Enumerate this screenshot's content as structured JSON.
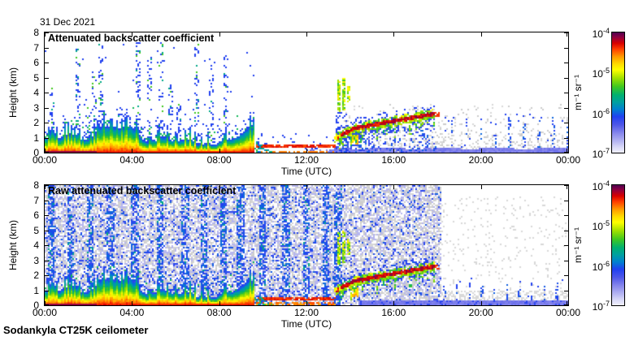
{
  "header": {
    "date": "31 Dec 2021"
  },
  "footer": {
    "instrument": "Sodankyla CT25K ceilometer"
  },
  "chart_data": [
    {
      "type": "heatmap",
      "title": "Attenuated backscatter coefficient",
      "xlabel": "Time (UTC)",
      "ylabel": "Height (km)",
      "x_ticks": [
        "00:00",
        "04:00",
        "08:00",
        "12:00",
        "16:00",
        "20:00",
        "00:00"
      ],
      "x_range_hours": [
        0,
        24
      ],
      "y_ticks": [
        "0",
        "1",
        "2",
        "3",
        "4",
        "5",
        "6",
        "7",
        "8"
      ],
      "ylim": [
        0,
        8
      ],
      "grid": false,
      "colorbar": {
        "units": "m⁻¹ sr⁻¹",
        "scale": "log",
        "range": [
          "1e-7",
          "1e-4"
        ],
        "ticks": [
          {
            "b": "10",
            "e": "-4"
          },
          {
            "b": "10",
            "e": "-5"
          },
          {
            "b": "10",
            "e": "-6"
          },
          {
            "b": "10",
            "e": "-7"
          }
        ],
        "stops": [
          [
            0,
            "#f0f0fc"
          ],
          [
            0.04,
            "#dcdcf8"
          ],
          [
            0.09,
            "#b8b8f2"
          ],
          [
            0.16,
            "#8888ec"
          ],
          [
            0.23,
            "#5058e8"
          ],
          [
            0.3,
            "#2040f0"
          ],
          [
            0.36,
            "#0080d0"
          ],
          [
            0.42,
            "#00a0a0"
          ],
          [
            0.48,
            "#00b070"
          ],
          [
            0.55,
            "#40c820"
          ],
          [
            0.62,
            "#a0e000"
          ],
          [
            0.69,
            "#ffff00"
          ],
          [
            0.74,
            "#ffd800"
          ],
          [
            0.8,
            "#ff9800"
          ],
          [
            0.86,
            "#ff4000"
          ],
          [
            0.91,
            "#d80000"
          ],
          [
            0.96,
            "#900040"
          ],
          [
            1,
            "#500050"
          ]
        ]
      },
      "features": {
        "boundary_layer": {
          "end_hour": 9.6,
          "taper_end_hour": 10.45,
          "mean_top_km": 1.05,
          "surface_line_end_hour": 2.4
        },
        "elevated_layer": {
          "h0": 9.7,
          "h1": 13.35,
          "z_km": 0.42
        },
        "virga_streaks": [
          [
            0.35,
            4.3
          ],
          [
            0.85,
            2.6
          ],
          [
            1.5,
            6.9
          ],
          [
            1.95,
            3.2
          ],
          [
            2.3,
            5.2
          ],
          [
            2.55,
            7.2
          ],
          [
            3.4,
            2.8
          ],
          [
            4.3,
            7.3
          ],
          [
            4.8,
            6.4
          ],
          [
            5.35,
            7.3
          ],
          [
            5.75,
            4.6
          ],
          [
            6.15,
            3.4
          ],
          [
            7.0,
            7.2
          ],
          [
            7.65,
            5.6
          ],
          [
            8.3,
            6.6
          ]
        ],
        "mid_streaks": [
          [
            13.5,
            0.1,
            2.7,
            4.9
          ],
          [
            13.72,
            0.08,
            2.85,
            5.0
          ],
          [
            13.93,
            0.05,
            3.3,
            4.4
          ]
        ],
        "cloud_base_points": [
          [
            13.3,
            0.95
          ],
          [
            14.2,
            1.6
          ],
          [
            16.0,
            2.1
          ],
          [
            17.9,
            2.6
          ]
        ],
        "cloud_blob": [
          14.0,
          14.4,
          0.55,
          1.15
        ],
        "end_clump": [
          17.85,
          18.1,
          2.35,
          2.7
        ],
        "surface_band_start_hour": 13.3,
        "gray_speckle": {
          "start_hour": 13.55,
          "top_km": 3.2
        }
      }
    },
    {
      "type": "heatmap",
      "title": "Raw attenuated backscatter coefficient",
      "xlabel": "Time (UTC)",
      "ylabel": "Height (km)",
      "x_ticks": [
        "00:00",
        "04:00",
        "08:00",
        "12:00",
        "16:00",
        "20:00",
        "00:00"
      ],
      "x_range_hours": [
        0,
        24
      ],
      "y_ticks": [
        "0",
        "1",
        "2",
        "3",
        "4",
        "5",
        "6",
        "7",
        "8"
      ],
      "ylim": [
        0,
        8
      ],
      "grid": false,
      "colorbar": {
        "units": "m⁻¹ sr⁻¹",
        "scale": "log",
        "range": [
          "1e-7",
          "1e-4"
        ],
        "ticks": [
          {
            "b": "10",
            "e": "-4"
          },
          {
            "b": "10",
            "e": "-5"
          },
          {
            "b": "10",
            "e": "-6"
          },
          {
            "b": "10",
            "e": "-7"
          }
        ]
      },
      "features": {
        "boundary_layer": {
          "end_hour": 9.6,
          "taper_end_hour": 10.45,
          "mean_top_km": 1.05,
          "surface_line_end_hour": 2.4
        },
        "elevated_layer": {
          "h0": 9.7,
          "h1": 13.35,
          "z_km": 0.42
        },
        "mid_streaks": [
          [
            13.5,
            0.1,
            2.7,
            4.9
          ],
          [
            13.72,
            0.08,
            2.85,
            5.0
          ],
          [
            13.93,
            0.05,
            3.3,
            4.4
          ]
        ],
        "cloud_base_points": [
          [
            13.3,
            0.95
          ],
          [
            14.2,
            1.6
          ],
          [
            16.0,
            2.1
          ],
          [
            17.9,
            2.6
          ]
        ],
        "cloud_blob": [
          14.0,
          14.4,
          0.55,
          1.15
        ],
        "end_clump": [
          17.85,
          18.1,
          2.35,
          2.7
        ],
        "surface_band_start_hour": 14.4,
        "noise": {
          "end_hour": 18.2,
          "stripe_hours": [
            0.3,
            1.2,
            2.1,
            3.0,
            4.15,
            5.3,
            6.45,
            7.3,
            8.2,
            9.0,
            10.0,
            11.05,
            12.0,
            12.9,
            13.45
          ],
          "stripe_halfwidth": 0.17
        },
        "quiet_region_start_hour": 18.2
      }
    }
  ]
}
